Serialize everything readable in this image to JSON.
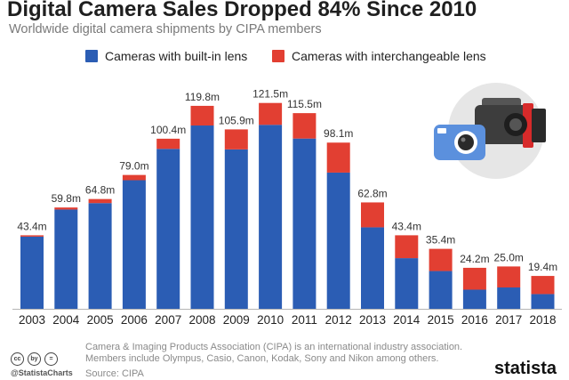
{
  "title": "Digital Camera Sales Dropped 84% Since 2010",
  "subtitle": "Worldwide digital camera shipments by CIPA members",
  "chart_data": {
    "type": "bar",
    "stacked": true,
    "categories": [
      "2003",
      "2004",
      "2005",
      "2006",
      "2007",
      "2008",
      "2009",
      "2010",
      "2011",
      "2012",
      "2013",
      "2014",
      "2015",
      "2016",
      "2017",
      "2018"
    ],
    "series": [
      {
        "name": "Cameras with built-in lens",
        "color": "#2b5db4",
        "values": [
          42.6,
          58.6,
          62.4,
          75.9,
          94.4,
          108.2,
          94.1,
          108.6,
          100.5,
          80.4,
          48.1,
          29.9,
          22.3,
          11.3,
          12.6,
          8.7
        ]
      },
      {
        "name": "Cameras with interchangeable lens",
        "color": "#e23f32",
        "values": [
          0.8,
          1.2,
          2.4,
          3.1,
          6.0,
          11.6,
          11.8,
          12.9,
          15.0,
          17.7,
          14.7,
          13.5,
          13.1,
          12.9,
          12.4,
          10.7
        ]
      }
    ],
    "totals": [
      "43.4m",
      "59.8m",
      "64.8m",
      "79.0m",
      "100.4m",
      "119.8m",
      "105.9m",
      "121.5m",
      "115.5m",
      "98.1m",
      "62.8m",
      "43.4m",
      "35.4m",
      "24.2m",
      "25.0m",
      "19.4m"
    ],
    "ylim": [
      0,
      135
    ],
    "grid": false,
    "legend_position": "top"
  },
  "footer": {
    "note": "Camera & Imaging Products Association (CIPA) is an international industry association. Members include Olympus, Casio, Canon, Kodak, Sony and Nikon among others.",
    "source": "Source: CIPA",
    "handle": "@StatistaCharts",
    "brand": "statista",
    "cc_icons": [
      "cc",
      "by",
      "="
    ]
  }
}
